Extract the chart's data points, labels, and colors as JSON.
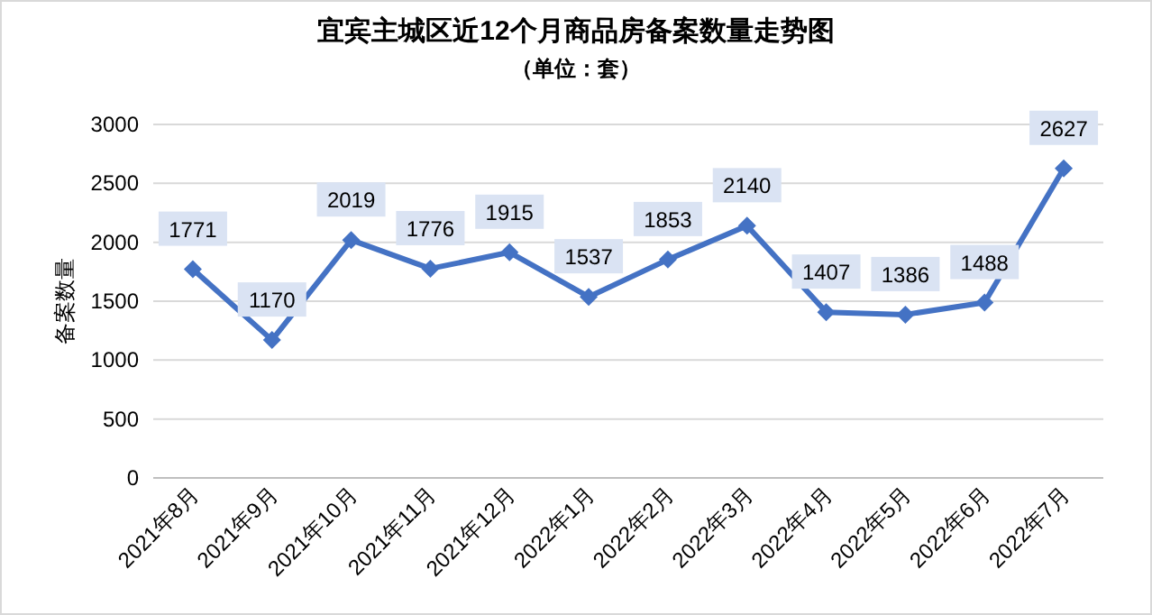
{
  "chart_data": {
    "type": "line",
    "title": "宜宾主城区近12个月商品房备案数量走势图",
    "subtitle": "（单位：套）",
    "ylabel": "备案数量",
    "categories": [
      "2021年8月",
      "2021年9月",
      "2021年10月",
      "2021年11月",
      "2021年12月",
      "2022年1月",
      "2022年2月",
      "2022年3月",
      "2022年4月",
      "2022年5月",
      "2022年6月",
      "2022年7月"
    ],
    "series": [
      {
        "color": "#4472c4",
        "values": [
          1771,
          1170,
          2019,
          1776,
          1915,
          1537,
          1853,
          2140,
          1407,
          1386,
          1488,
          2627
        ]
      }
    ],
    "ylim": [
      0,
      3000
    ],
    "yticks": [
      0,
      500,
      1000,
      1500,
      2000,
      2500,
      3000
    ],
    "grid": "y",
    "marker": "diamond",
    "line_style": "solid",
    "data_labels": true
  }
}
